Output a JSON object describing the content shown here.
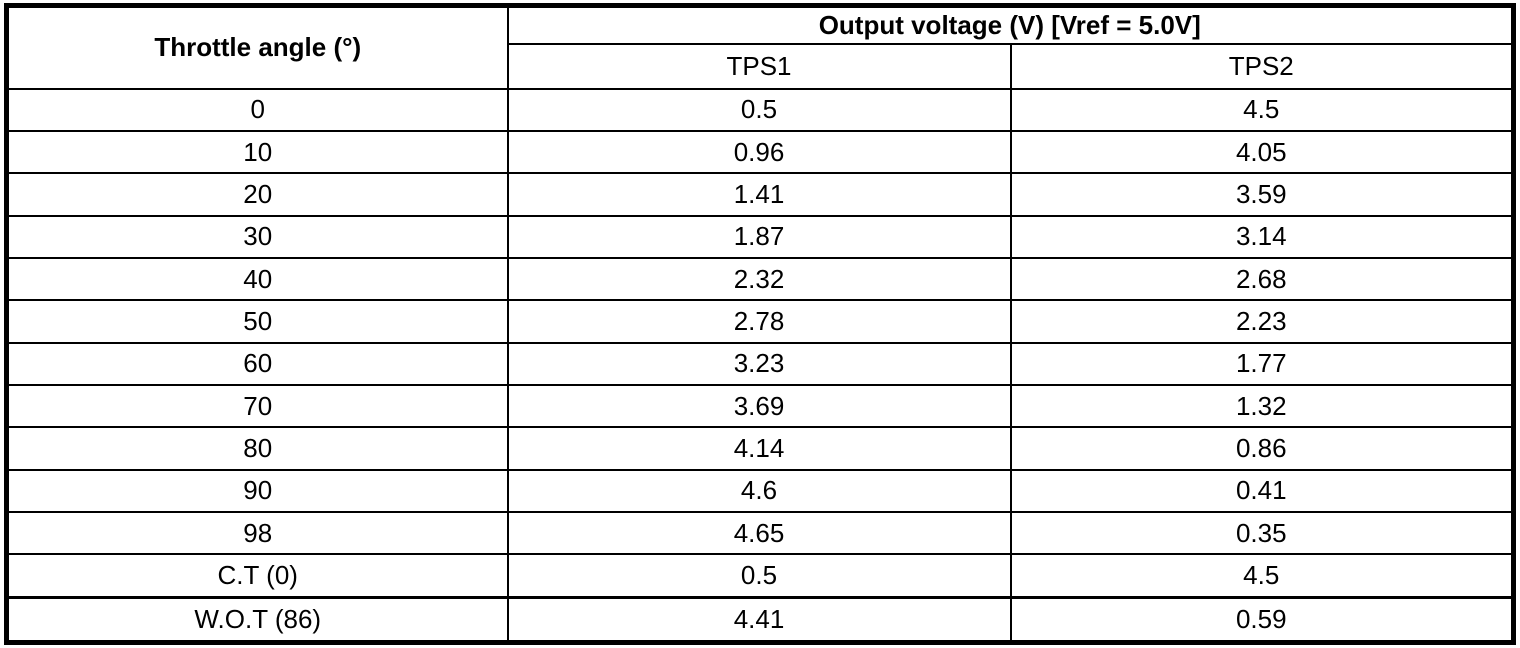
{
  "table": {
    "headers": {
      "throttle_angle": "Throttle angle (°)",
      "output_voltage": "Output voltage (V) [Vref = 5.0V]",
      "tps1": "TPS1",
      "tps2": "TPS2"
    },
    "rows": [
      {
        "angle": "0",
        "tps1": "0.5",
        "tps2": "4.5"
      },
      {
        "angle": "10",
        "tps1": "0.96",
        "tps2": "4.05"
      },
      {
        "angle": "20",
        "tps1": "1.41",
        "tps2": "3.59"
      },
      {
        "angle": "30",
        "tps1": "1.87",
        "tps2": "3.14"
      },
      {
        "angle": "40",
        "tps1": "2.32",
        "tps2": "2.68"
      },
      {
        "angle": "50",
        "tps1": "2.78",
        "tps2": "2.23"
      },
      {
        "angle": "60",
        "tps1": "3.23",
        "tps2": "1.77"
      },
      {
        "angle": "70",
        "tps1": "3.69",
        "tps2": "1.32"
      },
      {
        "angle": "80",
        "tps1": "4.14",
        "tps2": "0.86"
      },
      {
        "angle": "90",
        "tps1": "4.6",
        "tps2": "0.41"
      },
      {
        "angle": "98",
        "tps1": "4.65",
        "tps2": "0.35"
      },
      {
        "angle": "C.T (0)",
        "tps1": "0.5",
        "tps2": "4.5"
      },
      {
        "angle": "W.O.T (86)",
        "tps1": "4.41",
        "tps2": "0.59"
      }
    ],
    "colors": {
      "border": "#000000",
      "text": "#000000",
      "background": "#ffffff"
    }
  }
}
